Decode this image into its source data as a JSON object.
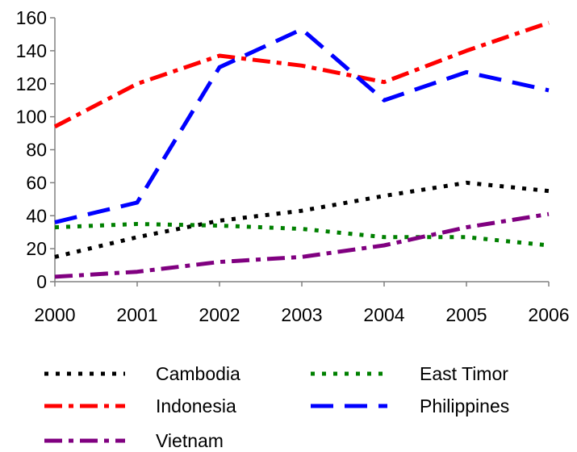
{
  "chart_data": {
    "type": "line",
    "x": [
      "2000",
      "2001",
      "2002",
      "2003",
      "2004",
      "2005",
      "2006"
    ],
    "ylim": [
      0,
      160
    ],
    "yticks": [
      0,
      20,
      40,
      60,
      80,
      100,
      120,
      140,
      160
    ],
    "grid": false,
    "legend_position": "bottom",
    "series": [
      {
        "name": "Cambodia",
        "color": "#000000",
        "dash": "dotted",
        "values": [
          15,
          27,
          37,
          43,
          52,
          60,
          55
        ]
      },
      {
        "name": "East Timor",
        "color": "#008000",
        "dash": "dotted",
        "values": [
          33,
          35,
          34,
          32,
          27,
          27,
          22
        ]
      },
      {
        "name": "Indonesia",
        "color": "#ff0000",
        "dash": "dash-dot",
        "values": [
          94,
          120,
          137,
          131,
          121,
          140,
          157
        ]
      },
      {
        "name": "Philippines",
        "color": "#0000ff",
        "dash": "long-dash",
        "values": [
          36,
          48,
          130,
          153,
          110,
          127,
          116
        ]
      },
      {
        "name": "Vietnam",
        "color": "#800080",
        "dash": "dash-dot",
        "values": [
          3,
          6,
          12,
          15,
          22,
          33,
          41
        ]
      }
    ]
  }
}
